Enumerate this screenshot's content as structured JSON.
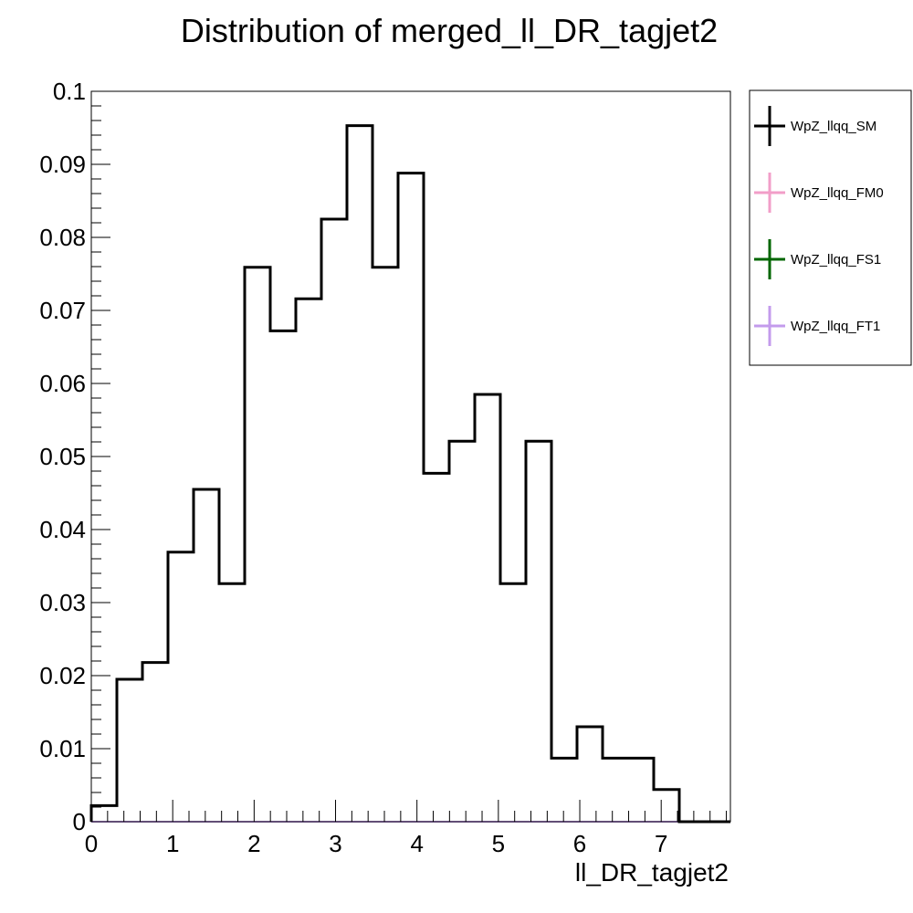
{
  "chart_data": {
    "type": "line",
    "title": "Distribution of merged_ll_DR_tagjet2",
    "xlabel": "ll_DR_tagjet2",
    "ylabel": "",
    "xlim": [
      0,
      7.85
    ],
    "ylim": [
      0,
      0.1
    ],
    "x_ticks": [
      0,
      1,
      2,
      3,
      4,
      5,
      6,
      7
    ],
    "y_ticks": [
      0,
      0.01,
      0.02,
      0.03,
      0.04,
      0.05,
      0.06,
      0.07,
      0.08,
      0.09,
      0.1
    ],
    "x_tick_labels": [
      "0",
      "1",
      "2",
      "3",
      "4",
      "5",
      "6",
      "7"
    ],
    "y_tick_labels": [
      "0",
      "0.01",
      "0.02",
      "0.03",
      "0.04",
      "0.05",
      "0.06",
      "0.07",
      "0.08",
      "0.09",
      "0.1"
    ],
    "bin_edges": [
      0,
      0.314,
      0.628,
      0.942,
      1.256,
      1.57,
      1.884,
      2.198,
      2.512,
      2.826,
      3.14,
      3.454,
      3.768,
      4.082,
      4.396,
      4.71,
      5.024,
      5.338,
      5.652,
      5.966,
      6.28,
      6.594,
      6.908,
      7.222,
      7.536,
      7.85
    ],
    "grid": false,
    "legend_position": "outside-right",
    "series": [
      {
        "name": "WpZ_llqq_SM",
        "color": "#000000",
        "values": [
          0.0022,
          0.0195,
          0.0218,
          0.0369,
          0.0455,
          0.0326,
          0.0759,
          0.0672,
          0.0716,
          0.0825,
          0.0953,
          0.0759,
          0.0888,
          0.0477,
          0.0521,
          0.0585,
          0.0326,
          0.0521,
          0.0087,
          0.013,
          0.0087,
          0.0087,
          0.0044,
          0,
          0
        ]
      },
      {
        "name": "WpZ_llqq_FM0",
        "color": "#f29ec8",
        "values": [
          0,
          0,
          0,
          0,
          0,
          0,
          0,
          0,
          0,
          0,
          0,
          0,
          0,
          0,
          0,
          0,
          0,
          0,
          0,
          0,
          0,
          0,
          0,
          0,
          0
        ]
      },
      {
        "name": "WpZ_llqq_FS1",
        "color": "#006600",
        "values": [
          0,
          0,
          0,
          0,
          0,
          0,
          0,
          0,
          0,
          0,
          0,
          0,
          0,
          0,
          0,
          0,
          0,
          0,
          0,
          0,
          0,
          0,
          0,
          0,
          0
        ]
      },
      {
        "name": "WpZ_llqq_FT1",
        "color": "#c39bec",
        "values": [
          0,
          0,
          0,
          0,
          0,
          0,
          0,
          0,
          0,
          0,
          0,
          0,
          0,
          0,
          0,
          0,
          0,
          0,
          0,
          0,
          0,
          0,
          0,
          0,
          0
        ]
      }
    ]
  }
}
